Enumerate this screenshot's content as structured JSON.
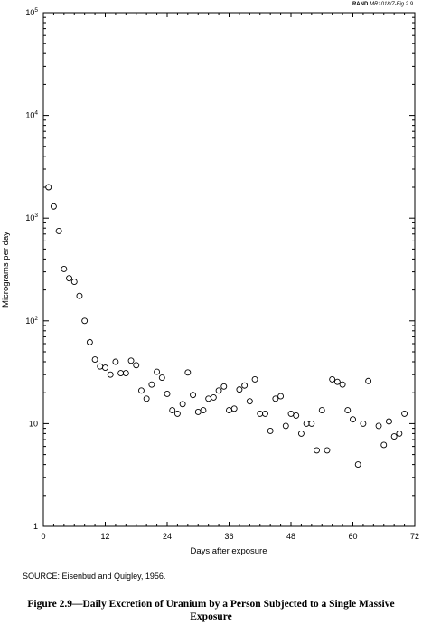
{
  "header": {
    "publisher": "RAND",
    "figure_ref": "MR1018/7-Fig.2.9"
  },
  "source": "SOURCE:  Eisenbud and Quigley, 1956.",
  "caption": {
    "line1": "Figure 2.9—Daily Excretion of Uranium by a Person Subjected to a Single Massive",
    "line2": "Exposure"
  },
  "chart_data": {
    "type": "scatter",
    "title": "",
    "xlabel": "Days after exposure",
    "ylabel": "Micrograms per day",
    "xlim": [
      0,
      72
    ],
    "ylim": [
      1,
      100000
    ],
    "yscale": "log",
    "grid": false,
    "marker": "open-circle",
    "x_ticks": [
      0,
      12,
      24,
      36,
      48,
      60,
      72
    ],
    "x_tick_labels": [
      "0",
      "12",
      "24",
      "36",
      "48",
      "60",
      "72"
    ],
    "y_ticks": [
      1,
      10,
      100,
      1000,
      10000,
      100000
    ],
    "y_tick_labels": [
      {
        "base": "1",
        "exp": ""
      },
      {
        "base": "10",
        "exp": ""
      },
      {
        "base": "10",
        "exp": "2"
      },
      {
        "base": "10",
        "exp": "3"
      },
      {
        "base": "10",
        "exp": "4"
      },
      {
        "base": "10",
        "exp": "5"
      }
    ],
    "x": [
      1,
      2,
      3,
      4,
      5,
      6,
      7,
      8,
      9,
      10,
      11,
      12,
      13,
      14,
      15,
      16,
      17,
      18,
      19,
      20,
      21,
      22,
      23,
      24,
      25,
      26,
      27,
      28,
      29,
      30,
      31,
      32,
      33,
      34,
      35,
      36,
      37,
      38,
      39,
      40,
      41,
      42,
      43,
      44,
      45,
      46,
      47,
      48,
      49,
      50,
      51,
      52,
      53,
      54,
      55,
      56,
      57,
      58,
      59,
      60,
      61,
      62,
      63,
      64,
      65,
      66,
      67,
      68,
      69,
      70
    ],
    "y": [
      2000,
      1300,
      750,
      320,
      260,
      240,
      175,
      100,
      62,
      42,
      36,
      35,
      30,
      40,
      31,
      31,
      41,
      37,
      21,
      17.5,
      24,
      32,
      28,
      19.5,
      13.5,
      12.5,
      15.5,
      31.5,
      19,
      13,
      13.5,
      17.5,
      18,
      21,
      23,
      13.5,
      14,
      21.5,
      23.5,
      16.5,
      27,
      12.5,
      12.5,
      8.5,
      17.5,
      18.5,
      9.5,
      12.5,
      12,
      8,
      10,
      10,
      5.5,
      13.5,
      5.5,
      27,
      25.5,
      24,
      13.5,
      11,
      4,
      10,
      26,
      null,
      9.5,
      6.2,
      10.5,
      7.5,
      8,
      12.5
    ]
  }
}
